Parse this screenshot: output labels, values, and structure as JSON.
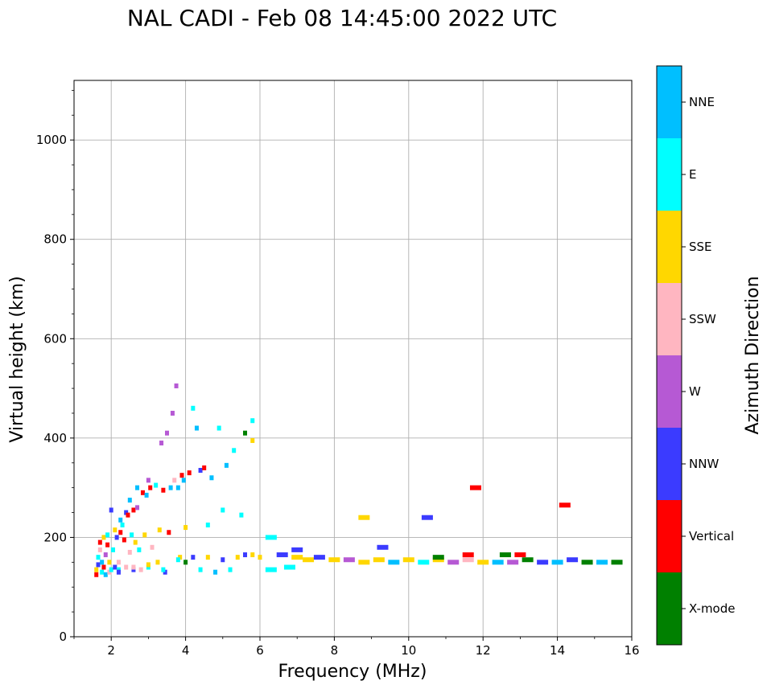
{
  "chart_data": {
    "type": "scatter",
    "title": "NAL CADI - Feb 08 14:45:00 2022 UTC",
    "xlabel": "Frequency (MHz)",
    "ylabel": "Virtual height (km)",
    "xlim": [
      1,
      16
    ],
    "ylim": [
      0,
      1120
    ],
    "xticks": [
      2,
      4,
      6,
      8,
      10,
      12,
      14,
      16
    ],
    "yticks": [
      0,
      200,
      400,
      600,
      800,
      1000
    ],
    "grid": true,
    "colorbar": {
      "label": "Azimuth Direction",
      "categories": [
        {
          "name": "X-mode",
          "color": "#008000"
        },
        {
          "name": "Vertical",
          "color": "#ff0000"
        },
        {
          "name": "NNW",
          "color": "#3b3bff"
        },
        {
          "name": "W",
          "color": "#b659d4"
        },
        {
          "name": "SSW",
          "color": "#ffb6c1"
        },
        {
          "name": "SSE",
          "color": "#ffd700"
        },
        {
          "name": "E",
          "color": "#00ffff"
        },
        {
          "name": "NNE",
          "color": "#00bfff"
        }
      ]
    },
    "points": [
      {
        "f": 1.6,
        "h": 125,
        "c": "Vertical"
      },
      {
        "f": 1.6,
        "h": 135,
        "c": "SSE"
      },
      {
        "f": 1.65,
        "h": 145,
        "c": "NNW"
      },
      {
        "f": 1.65,
        "h": 160,
        "c": "E"
      },
      {
        "f": 1.7,
        "h": 175,
        "c": "SSW"
      },
      {
        "f": 1.7,
        "h": 190,
        "c": "Vertical"
      },
      {
        "f": 1.75,
        "h": 130,
        "c": "E"
      },
      {
        "f": 1.75,
        "h": 150,
        "c": "NNE"
      },
      {
        "f": 1.8,
        "h": 200,
        "c": "SSE"
      },
      {
        "f": 1.8,
        "h": 140,
        "c": "Vertical"
      },
      {
        "f": 1.85,
        "h": 165,
        "c": "W"
      },
      {
        "f": 1.85,
        "h": 125,
        "c": "NNE"
      },
      {
        "f": 1.9,
        "h": 185,
        "c": "Vertical"
      },
      {
        "f": 1.9,
        "h": 205,
        "c": "E"
      },
      {
        "f": 1.95,
        "h": 130,
        "c": "SSW"
      },
      {
        "f": 1.95,
        "h": 150,
        "c": "SSE"
      },
      {
        "f": 2.0,
        "h": 135,
        "c": "E"
      },
      {
        "f": 2.0,
        "h": 255,
        "c": "NNW"
      },
      {
        "f": 2.05,
        "h": 175,
        "c": "E"
      },
      {
        "f": 2.1,
        "h": 140,
        "c": "NNW"
      },
      {
        "f": 2.1,
        "h": 215,
        "c": "SSE"
      },
      {
        "f": 2.15,
        "h": 200,
        "c": "NNW"
      },
      {
        "f": 2.2,
        "h": 135,
        "c": "E"
      },
      {
        "f": 2.2,
        "h": 150,
        "c": "SSW"
      },
      {
        "f": 2.25,
        "h": 210,
        "c": "Vertical"
      },
      {
        "f": 2.25,
        "h": 235,
        "c": "NNE"
      },
      {
        "f": 2.3,
        "h": 225,
        "c": "E"
      },
      {
        "f": 2.35,
        "h": 195,
        "c": "Vertical"
      },
      {
        "f": 2.4,
        "h": 140,
        "c": "SSW"
      },
      {
        "f": 2.4,
        "h": 250,
        "c": "NNW"
      },
      {
        "f": 2.45,
        "h": 245,
        "c": "Vertical"
      },
      {
        "f": 2.5,
        "h": 170,
        "c": "SSW"
      },
      {
        "f": 2.5,
        "h": 275,
        "c": "NNE"
      },
      {
        "f": 2.55,
        "h": 205,
        "c": "E"
      },
      {
        "f": 2.6,
        "h": 135,
        "c": "NNW"
      },
      {
        "f": 2.6,
        "h": 255,
        "c": "Vertical"
      },
      {
        "f": 2.65,
        "h": 190,
        "c": "SSE"
      },
      {
        "f": 2.7,
        "h": 260,
        "c": "W"
      },
      {
        "f": 2.7,
        "h": 300,
        "c": "NNE"
      },
      {
        "f": 2.75,
        "h": 175,
        "c": "E"
      },
      {
        "f": 2.8,
        "h": 135,
        "c": "SSW"
      },
      {
        "f": 2.85,
        "h": 290,
        "c": "Vertical"
      },
      {
        "f": 2.9,
        "h": 205,
        "c": "SSE"
      },
      {
        "f": 2.95,
        "h": 285,
        "c": "NNE"
      },
      {
        "f": 3.0,
        "h": 140,
        "c": "E"
      },
      {
        "f": 3.0,
        "h": 315,
        "c": "W"
      },
      {
        "f": 3.05,
        "h": 300,
        "c": "Vertical"
      },
      {
        "f": 3.1,
        "h": 180,
        "c": "SSW"
      },
      {
        "f": 3.2,
        "h": 305,
        "c": "E"
      },
      {
        "f": 3.25,
        "h": 150,
        "c": "SSE"
      },
      {
        "f": 3.3,
        "h": 215,
        "c": "SSE"
      },
      {
        "f": 3.35,
        "h": 390,
        "c": "W"
      },
      {
        "f": 3.4,
        "h": 295,
        "c": "Vertical"
      },
      {
        "f": 3.45,
        "h": 130,
        "c": "NNW"
      },
      {
        "f": 3.5,
        "h": 410,
        "c": "W"
      },
      {
        "f": 3.55,
        "h": 210,
        "c": "Vertical"
      },
      {
        "f": 3.6,
        "h": 300,
        "c": "NNE"
      },
      {
        "f": 3.65,
        "h": 450,
        "c": "W"
      },
      {
        "f": 3.7,
        "h": 315,
        "c": "SSW"
      },
      {
        "f": 3.75,
        "h": 505,
        "c": "W"
      },
      {
        "f": 3.8,
        "h": 300,
        "c": "NNE"
      },
      {
        "f": 3.85,
        "h": 160,
        "c": "SSE"
      },
      {
        "f": 3.9,
        "h": 325,
        "c": "Vertical"
      },
      {
        "f": 3.95,
        "h": 315,
        "c": "NNE"
      },
      {
        "f": 4.0,
        "h": 220,
        "c": "SSE"
      },
      {
        "f": 4.1,
        "h": 330,
        "c": "Vertical"
      },
      {
        "f": 4.2,
        "h": 460,
        "c": "E"
      },
      {
        "f": 4.3,
        "h": 420,
        "c": "NNE"
      },
      {
        "f": 4.4,
        "h": 335,
        "c": "NNW"
      },
      {
        "f": 4.5,
        "h": 340,
        "c": "Vertical"
      },
      {
        "f": 4.6,
        "h": 225,
        "c": "E"
      },
      {
        "f": 4.7,
        "h": 320,
        "c": "NNE"
      },
      {
        "f": 4.9,
        "h": 420,
        "c": "E"
      },
      {
        "f": 5.0,
        "h": 255,
        "c": "E"
      },
      {
        "f": 5.1,
        "h": 345,
        "c": "NNE"
      },
      {
        "f": 5.3,
        "h": 375,
        "c": "E"
      },
      {
        "f": 5.5,
        "h": 245,
        "c": "E"
      },
      {
        "f": 5.6,
        "h": 410,
        "c": "X-mode"
      },
      {
        "f": 5.8,
        "h": 435,
        "c": "E"
      },
      {
        "f": 5.8,
        "h": 395,
        "c": "SSE"
      },
      {
        "f": 6.3,
        "h": 200,
        "c": "E"
      },
      {
        "f": 7.0,
        "h": 175,
        "c": "NNW"
      },
      {
        "f": 8.8,
        "h": 240,
        "c": "SSE"
      },
      {
        "f": 9.3,
        "h": 180,
        "c": "NNW"
      },
      {
        "f": 10.5,
        "h": 240,
        "c": "NNW"
      },
      {
        "f": 11.8,
        "h": 300,
        "c": "Vertical"
      },
      {
        "f": 14.2,
        "h": 265,
        "c": "Vertical"
      },
      {
        "f": 2.2,
        "h": 130,
        "c": "NNW"
      },
      {
        "f": 2.6,
        "h": 140,
        "c": "SSW"
      },
      {
        "f": 3.0,
        "h": 145,
        "c": "SSE"
      },
      {
        "f": 3.4,
        "h": 135,
        "c": "E"
      },
      {
        "f": 3.8,
        "h": 155,
        "c": "E"
      },
      {
        "f": 4.0,
        "h": 150,
        "c": "X-mode"
      },
      {
        "f": 4.2,
        "h": 160,
        "c": "NNW"
      },
      {
        "f": 4.4,
        "h": 135,
        "c": "E"
      },
      {
        "f": 4.6,
        "h": 160,
        "c": "SSE"
      },
      {
        "f": 4.8,
        "h": 130,
        "c": "NNE"
      },
      {
        "f": 5.0,
        "h": 155,
        "c": "NNW"
      },
      {
        "f": 5.2,
        "h": 135,
        "c": "E"
      },
      {
        "f": 5.4,
        "h": 160,
        "c": "SSE"
      },
      {
        "f": 5.6,
        "h": 165,
        "c": "NNW"
      },
      {
        "f": 5.8,
        "h": 165,
        "c": "SSE"
      },
      {
        "f": 6.0,
        "h": 160,
        "c": "SSE"
      },
      {
        "f": 6.3,
        "h": 135,
        "c": "E"
      },
      {
        "f": 6.6,
        "h": 165,
        "c": "NNW"
      },
      {
        "f": 6.8,
        "h": 140,
        "c": "E"
      },
      {
        "f": 7.0,
        "h": 160,
        "c": "SSE"
      },
      {
        "f": 7.3,
        "h": 155,
        "c": "SSE"
      },
      {
        "f": 7.6,
        "h": 160,
        "c": "NNW"
      },
      {
        "f": 8.0,
        "h": 155,
        "c": "SSE"
      },
      {
        "f": 8.4,
        "h": 155,
        "c": "W"
      },
      {
        "f": 8.8,
        "h": 150,
        "c": "SSE"
      },
      {
        "f": 9.2,
        "h": 155,
        "c": "SSE"
      },
      {
        "f": 9.6,
        "h": 150,
        "c": "NNE"
      },
      {
        "f": 10.0,
        "h": 155,
        "c": "SSE"
      },
      {
        "f": 10.4,
        "h": 150,
        "c": "E"
      },
      {
        "f": 10.8,
        "h": 155,
        "c": "SSE"
      },
      {
        "f": 11.2,
        "h": 150,
        "c": "W"
      },
      {
        "f": 11.6,
        "h": 155,
        "c": "SSW"
      },
      {
        "f": 12.0,
        "h": 150,
        "c": "SSE"
      },
      {
        "f": 12.4,
        "h": 150,
        "c": "NNE"
      },
      {
        "f": 12.8,
        "h": 150,
        "c": "W"
      },
      {
        "f": 13.2,
        "h": 155,
        "c": "X-mode"
      },
      {
        "f": 13.6,
        "h": 150,
        "c": "NNW"
      },
      {
        "f": 14.0,
        "h": 150,
        "c": "NNE"
      },
      {
        "f": 14.4,
        "h": 155,
        "c": "NNW"
      },
      {
        "f": 14.8,
        "h": 150,
        "c": "X-mode"
      },
      {
        "f": 15.2,
        "h": 150,
        "c": "NNE"
      },
      {
        "f": 15.6,
        "h": 150,
        "c": "X-mode"
      },
      {
        "f": 11.6,
        "h": 165,
        "c": "Vertical"
      },
      {
        "f": 12.6,
        "h": 165,
        "c": "X-mode"
      },
      {
        "f": 13.0,
        "h": 165,
        "c": "Vertical"
      },
      {
        "f": 10.8,
        "h": 160,
        "c": "X-mode"
      }
    ]
  }
}
